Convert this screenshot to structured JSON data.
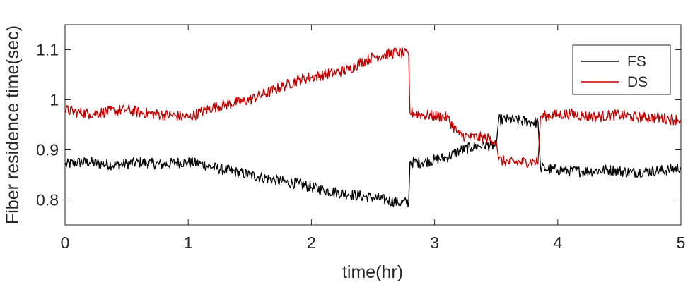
{
  "chart_data": {
    "type": "line",
    "title": "",
    "xlabel": "time(hr)",
    "ylabel": "Fiber residence time(sec)",
    "xlim": [
      0,
      5
    ],
    "ylim": [
      0.75,
      1.15
    ],
    "xticks": [
      0,
      1,
      2,
      3,
      4,
      5
    ],
    "xtick_labels": [
      "0",
      "1",
      "2",
      "3",
      "4",
      "5"
    ],
    "yticks": [
      0.8,
      0.9,
      1.0,
      1.1
    ],
    "ytick_labels": [
      "0.8",
      "0.9",
      "1",
      "1.1"
    ],
    "grid": false,
    "legend_position": "top-right",
    "series": [
      {
        "name": "FS",
        "color": "#000000",
        "x": [
          0,
          0.1,
          0.2,
          0.3,
          0.4,
          0.5,
          0.6,
          0.7,
          0.8,
          0.9,
          1.0,
          1.1,
          1.2,
          1.3,
          1.4,
          1.5,
          1.6,
          1.7,
          1.8,
          1.9,
          2.0,
          2.1,
          2.2,
          2.3,
          2.4,
          2.5,
          2.6,
          2.7,
          2.79,
          2.8,
          2.9,
          3.0,
          3.1,
          3.2,
          3.3,
          3.4,
          3.5,
          3.52,
          3.6,
          3.7,
          3.8,
          3.84,
          3.86,
          3.9,
          4.0,
          4.1,
          4.2,
          4.3,
          4.4,
          4.5,
          4.6,
          4.7,
          4.8,
          4.9,
          5.0
        ],
        "values": [
          0.87,
          0.875,
          0.875,
          0.872,
          0.87,
          0.872,
          0.875,
          0.873,
          0.87,
          0.875,
          0.875,
          0.872,
          0.865,
          0.86,
          0.855,
          0.85,
          0.845,
          0.84,
          0.835,
          0.832,
          0.825,
          0.82,
          0.815,
          0.812,
          0.808,
          0.805,
          0.8,
          0.795,
          0.795,
          0.875,
          0.875,
          0.88,
          0.885,
          0.898,
          0.905,
          0.91,
          0.908,
          0.96,
          0.96,
          0.958,
          0.955,
          0.955,
          0.865,
          0.862,
          0.86,
          0.858,
          0.857,
          0.858,
          0.86,
          0.858,
          0.855,
          0.857,
          0.858,
          0.86,
          0.865
        ]
      },
      {
        "name": "DS",
        "color": "#c00000",
        "x": [
          0,
          0.1,
          0.2,
          0.3,
          0.4,
          0.5,
          0.6,
          0.7,
          0.8,
          0.9,
          1.0,
          1.1,
          1.2,
          1.3,
          1.4,
          1.5,
          1.6,
          1.7,
          1.8,
          1.9,
          2.0,
          2.1,
          2.2,
          2.3,
          2.4,
          2.5,
          2.6,
          2.7,
          2.79,
          2.8,
          2.9,
          3.0,
          3.1,
          3.2,
          3.3,
          3.4,
          3.5,
          3.52,
          3.6,
          3.7,
          3.8,
          3.84,
          3.86,
          3.9,
          4.0,
          4.1,
          4.2,
          4.3,
          4.4,
          4.5,
          4.6,
          4.7,
          4.8,
          4.9,
          5.0
        ],
        "values": [
          0.98,
          0.975,
          0.972,
          0.975,
          0.978,
          0.98,
          0.975,
          0.972,
          0.97,
          0.968,
          0.965,
          0.975,
          0.985,
          0.99,
          0.995,
          1.0,
          1.01,
          1.02,
          1.03,
          1.04,
          1.045,
          1.05,
          1.055,
          1.06,
          1.075,
          1.085,
          1.09,
          1.095,
          1.09,
          0.975,
          0.97,
          0.968,
          0.965,
          0.93,
          0.925,
          0.925,
          0.918,
          0.88,
          0.875,
          0.875,
          0.877,
          0.875,
          0.965,
          0.968,
          0.97,
          0.972,
          0.968,
          0.966,
          0.968,
          0.97,
          0.966,
          0.965,
          0.964,
          0.962,
          0.96
        ]
      }
    ]
  }
}
